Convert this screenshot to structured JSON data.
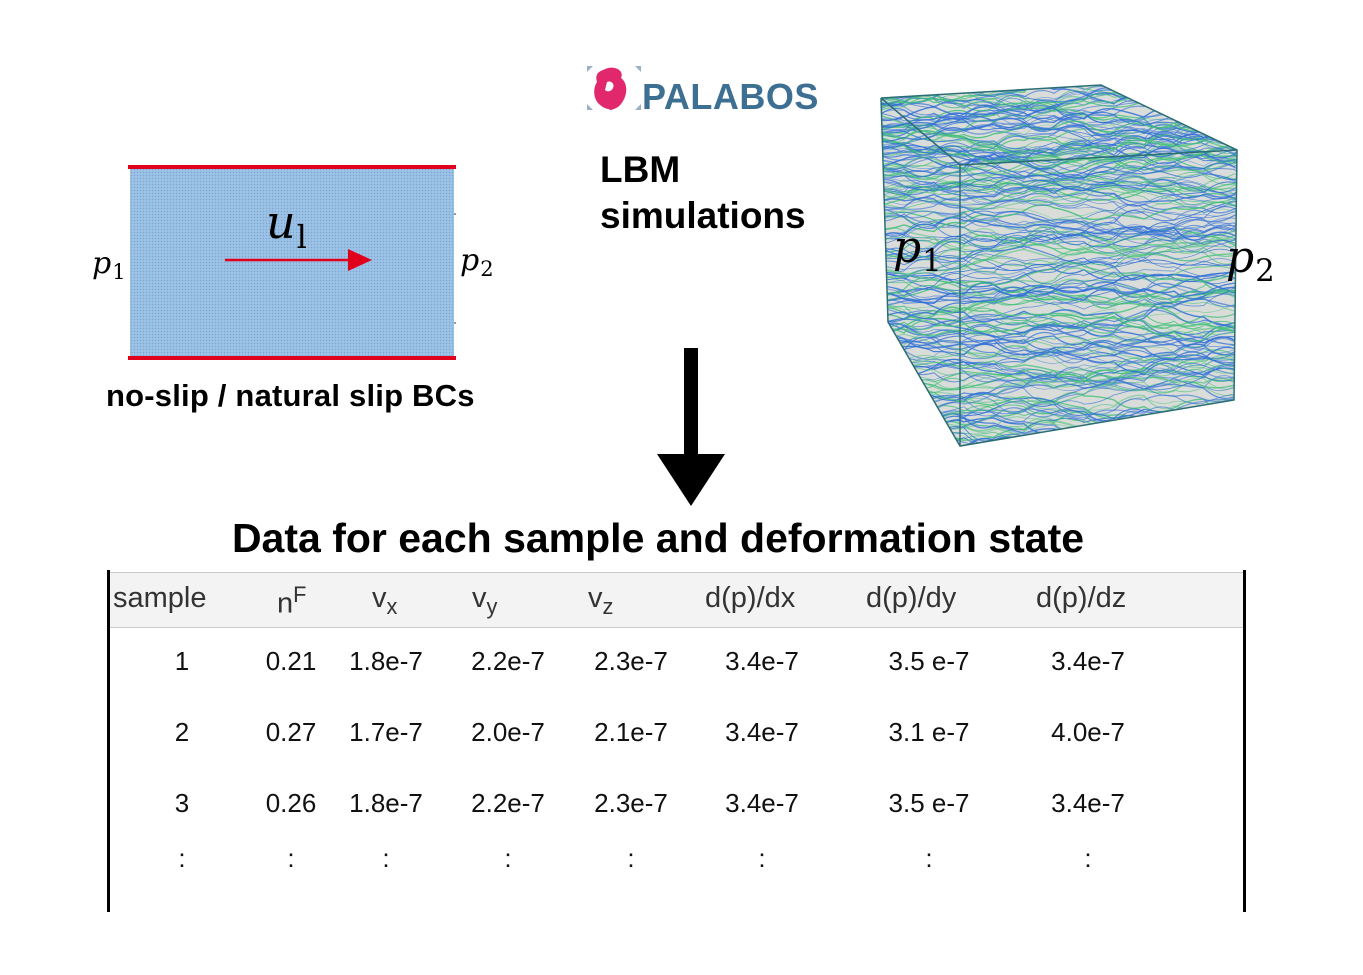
{
  "left_diagram": {
    "inlet_pressure": "p",
    "inlet_pressure_sub": "1",
    "outlet_pressure": "p",
    "outlet_pressure_sub": "2",
    "velocity": "u",
    "velocity_sub": "l",
    "caption": "no-slip / natural slip BCs",
    "colors": {
      "fluid": "#9cc2e6",
      "walls": "#e0001b",
      "arrow": "#e0001b"
    }
  },
  "logo": {
    "text": "PALABOS",
    "color": "#3d6f92",
    "mark_color": "#e2286d"
  },
  "method": {
    "line1": "LBM",
    "line2": "simulations"
  },
  "right_diagram": {
    "inlet_pressure": "p",
    "inlet_pressure_sub": "1",
    "outlet_pressure": "p",
    "outlet_pressure_sub": "2",
    "colors": {
      "streamlines_primary": "#2f6fd6",
      "streamlines_secondary": "#44c07a",
      "edges": "#2a6e74"
    }
  },
  "flow_arrow_icon": "down-arrow-icon",
  "data_title": "Data for each sample and deformation state",
  "table": {
    "headers": [
      {
        "base": "sample",
        "script": "",
        "kind": ""
      },
      {
        "base": "n",
        "script": "F",
        "kind": "sup"
      },
      {
        "base": "v",
        "script": "x",
        "kind": "sub"
      },
      {
        "base": "v",
        "script": "y",
        "kind": "sub"
      },
      {
        "base": "v",
        "script": "z",
        "kind": "sub"
      },
      {
        "base": "d(p)/dx",
        "script": "",
        "kind": ""
      },
      {
        "base": "d(p)/dy",
        "script": "",
        "kind": ""
      },
      {
        "base": "d(p)/dz",
        "script": "",
        "kind": ""
      }
    ],
    "rows": [
      [
        "1",
        "0.21",
        "1.8e-7",
        "2.2e-7",
        "2.3e-7",
        "3.4e-7",
        "3.5 e-7",
        "3.4e-7"
      ],
      [
        "2",
        "0.27",
        "1.7e-7",
        "2.0e-7",
        "2.1e-7",
        "3.4e-7",
        "3.1 e-7",
        "4.0e-7"
      ],
      [
        "3",
        "0.26",
        "1.8e-7",
        "2.2e-7",
        "2.3e-7",
        "3.4e-7",
        "3.5 e-7",
        "3.4e-7"
      ],
      [
        ":",
        ":",
        ":",
        ":",
        ":",
        ":",
        ":",
        ":"
      ]
    ]
  }
}
